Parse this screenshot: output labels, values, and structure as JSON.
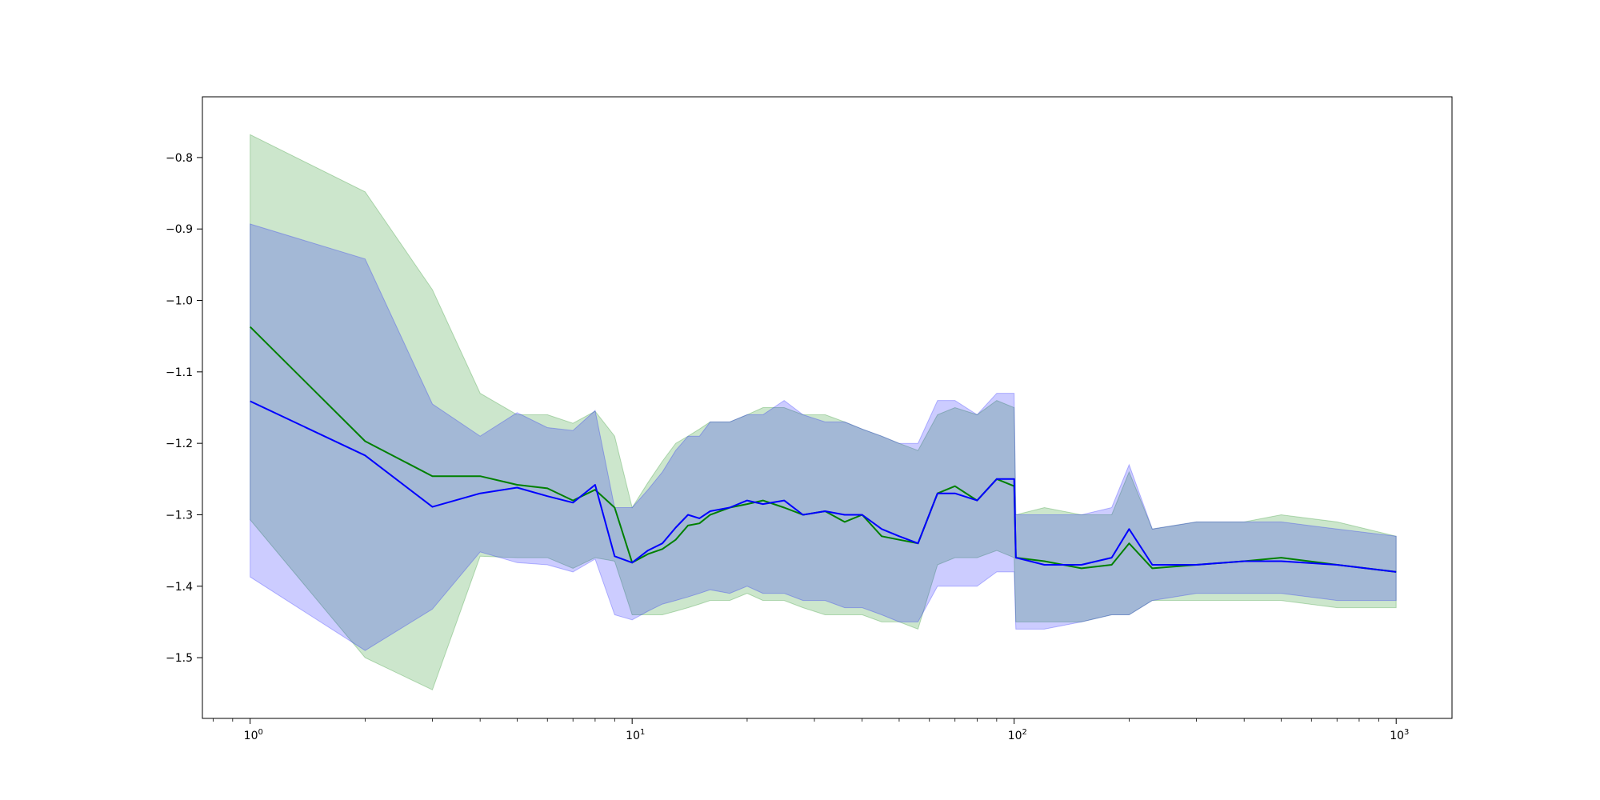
{
  "chart_data": {
    "type": "line",
    "title": "",
    "xlabel": "",
    "ylabel": "",
    "x_scale": "log",
    "xlim": [
      0.75,
      1400
    ],
    "ylim": [
      -1.585,
      -0.715
    ],
    "grid": false,
    "legend": "none",
    "x_ticks": [
      {
        "base": "10",
        "exp": "0",
        "value": 1
      },
      {
        "base": "10",
        "exp": "1",
        "value": 10
      },
      {
        "base": "10",
        "exp": "2",
        "value": 100
      },
      {
        "base": "10",
        "exp": "3",
        "value": 1000
      }
    ],
    "y_ticks": [
      {
        "label": "−0.8",
        "value": -0.8
      },
      {
        "label": "−0.9",
        "value": -0.9
      },
      {
        "label": "−1.0",
        "value": -1.0
      },
      {
        "label": "−1.1",
        "value": -1.1
      },
      {
        "label": "−1.2",
        "value": -1.2
      },
      {
        "label": "−1.3",
        "value": -1.3
      },
      {
        "label": "−1.4",
        "value": -1.4
      },
      {
        "label": "−1.5",
        "value": -1.5
      }
    ],
    "series": [
      {
        "color": "#008000",
        "band_color": "#008000",
        "x": [
          1,
          2,
          3,
          4,
          5,
          6,
          7,
          8,
          9,
          10,
          11,
          12,
          13,
          14,
          15,
          16,
          18,
          20,
          22,
          25,
          28,
          32,
          36,
          40,
          45,
          50,
          56,
          63,
          70,
          80,
          90,
          100,
          101,
          120,
          150,
          180,
          200,
          230,
          300,
          400,
          500,
          700,
          1000
        ],
        "y": [
          -1.037,
          -1.197,
          -1.246,
          -1.246,
          -1.258,
          -1.263,
          -1.28,
          -1.265,
          -1.29,
          -1.367,
          -1.355,
          -1.348,
          -1.335,
          -1.315,
          -1.312,
          -1.3,
          -1.29,
          -1.285,
          -1.28,
          -1.29,
          -1.3,
          -1.295,
          -1.31,
          -1.3,
          -1.33,
          -1.335,
          -1.34,
          -1.27,
          -1.26,
          -1.28,
          -1.25,
          -1.26,
          -1.36,
          -1.365,
          -1.375,
          -1.37,
          -1.34,
          -1.375,
          -1.37,
          -1.365,
          -1.36,
          -1.37,
          -1.38
        ],
        "upper": [
          -0.768,
          -0.848,
          -0.985,
          -1.13,
          -1.16,
          -1.16,
          -1.172,
          -1.155,
          -1.19,
          -1.29,
          -1.255,
          -1.225,
          -1.2,
          -1.19,
          -1.18,
          -1.17,
          -1.17,
          -1.16,
          -1.15,
          -1.15,
          -1.16,
          -1.16,
          -1.17,
          -1.18,
          -1.19,
          -1.2,
          -1.21,
          -1.16,
          -1.15,
          -1.16,
          -1.14,
          -1.15,
          -1.3,
          -1.29,
          -1.3,
          -1.3,
          -1.24,
          -1.32,
          -1.31,
          -1.31,
          -1.3,
          -1.31,
          -1.33
        ],
        "lower": [
          -1.307,
          -1.5,
          -1.545,
          -1.358,
          -1.36,
          -1.36,
          -1.375,
          -1.36,
          -1.365,
          -1.44,
          -1.44,
          -1.44,
          -1.435,
          -1.43,
          -1.425,
          -1.42,
          -1.42,
          -1.41,
          -1.42,
          -1.42,
          -1.43,
          -1.44,
          -1.44,
          -1.44,
          -1.45,
          -1.45,
          -1.46,
          -1.37,
          -1.36,
          -1.36,
          -1.35,
          -1.36,
          -1.45,
          -1.45,
          -1.45,
          -1.44,
          -1.44,
          -1.42,
          -1.42,
          -1.42,
          -1.42,
          -1.43,
          -1.43
        ]
      },
      {
        "color": "#0000ff",
        "band_color": "#0000ff",
        "x": [
          1,
          2,
          3,
          4,
          5,
          6,
          7,
          8,
          9,
          10,
          11,
          12,
          13,
          14,
          15,
          16,
          18,
          20,
          22,
          25,
          28,
          32,
          36,
          40,
          45,
          50,
          56,
          63,
          70,
          80,
          90,
          100,
          101,
          120,
          150,
          180,
          200,
          230,
          300,
          400,
          500,
          700,
          1000
        ],
        "y": [
          -1.141,
          -1.217,
          -1.289,
          -1.27,
          -1.262,
          -1.274,
          -1.283,
          -1.258,
          -1.358,
          -1.367,
          -1.35,
          -1.34,
          -1.318,
          -1.3,
          -1.305,
          -1.295,
          -1.29,
          -1.28,
          -1.285,
          -1.28,
          -1.3,
          -1.295,
          -1.3,
          -1.3,
          -1.32,
          -1.33,
          -1.34,
          -1.27,
          -1.27,
          -1.28,
          -1.25,
          -1.25,
          -1.36,
          -1.37,
          -1.37,
          -1.36,
          -1.32,
          -1.37,
          -1.37,
          -1.365,
          -1.365,
          -1.37,
          -1.38
        ],
        "upper": [
          -0.893,
          -0.942,
          -1.145,
          -1.19,
          -1.157,
          -1.178,
          -1.182,
          -1.154,
          -1.29,
          -1.29,
          -1.265,
          -1.24,
          -1.21,
          -1.19,
          -1.19,
          -1.17,
          -1.17,
          -1.16,
          -1.16,
          -1.14,
          -1.16,
          -1.17,
          -1.17,
          -1.18,
          -1.19,
          -1.2,
          -1.2,
          -1.14,
          -1.14,
          -1.16,
          -1.13,
          -1.13,
          -1.3,
          -1.3,
          -1.3,
          -1.29,
          -1.23,
          -1.32,
          -1.31,
          -1.31,
          -1.31,
          -1.32,
          -1.33
        ],
        "lower": [
          -1.387,
          -1.49,
          -1.432,
          -1.352,
          -1.367,
          -1.37,
          -1.38,
          -1.362,
          -1.44,
          -1.447,
          -1.435,
          -1.425,
          -1.42,
          -1.415,
          -1.41,
          -1.405,
          -1.41,
          -1.4,
          -1.41,
          -1.41,
          -1.42,
          -1.42,
          -1.43,
          -1.43,
          -1.44,
          -1.45,
          -1.45,
          -1.4,
          -1.4,
          -1.4,
          -1.38,
          -1.38,
          -1.46,
          -1.46,
          -1.45,
          -1.44,
          -1.44,
          -1.42,
          -1.41,
          -1.41,
          -1.41,
          -1.42,
          -1.42
        ]
      }
    ]
  }
}
